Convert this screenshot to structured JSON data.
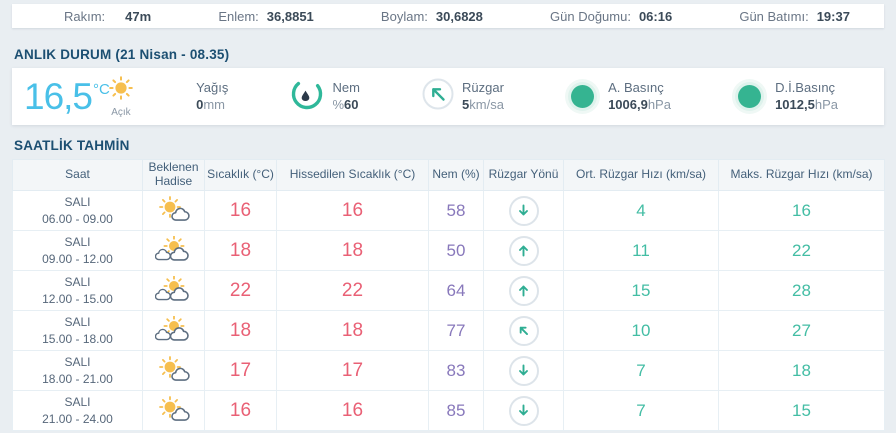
{
  "location_bar": {
    "items": [
      {
        "label": "Rakım:",
        "value": "47m"
      },
      {
        "label": "Enlem:",
        "value": "36,8851"
      },
      {
        "label": "Boylam:",
        "value": "30,6828"
      },
      {
        "label": "Gün Doğumu:",
        "value": "06:16"
      },
      {
        "label": "Gün Batımı:",
        "value": "19:37"
      }
    ]
  },
  "current": {
    "section_title": "ANLIK DURUM",
    "section_subtitle": "(21 Nisan - 08.35)",
    "temperature": "16,5",
    "temperature_unit": "°C",
    "condition_icon": "sun",
    "condition_label": "Açık",
    "precipitation_label": "Yağış",
    "precipitation_value": "0",
    "precipitation_unit": "mm",
    "humidity_icon": "humidity-gauge",
    "humidity_label": "Nem",
    "humidity_prefix": "%",
    "humidity_value": "60",
    "wind_icon": "wind-direction-circle",
    "wind_direction": "up-left",
    "wind_label": "Rüzgar",
    "wind_value": "5",
    "wind_unit": "km/sa",
    "pressure_icon": "pressure-dot",
    "pressure_label": "A. Basınç",
    "pressure_value": "1006,9",
    "pressure_unit": "hPa",
    "sea_pressure_icon": "pressure-dot",
    "sea_pressure_label": "D.İ.Basınç",
    "sea_pressure_value": "1012,5",
    "sea_pressure_unit": "hPa"
  },
  "hourly": {
    "section_title": "SAATLİK TAHMİN",
    "columns": [
      "Saat",
      "Beklenen Hadise",
      "Sıcaklık (°C)",
      "Hissedilen Sıcaklık (°C)",
      "Nem (%)",
      "Rüzgar Yönü",
      "Ort. Rüzgar Hızı (km/sa)",
      "Maks. Rüzgar Hızı (km/sa)"
    ],
    "rows": [
      {
        "day": "SALI",
        "time": "06.00 - 09.00",
        "icon": "sun-cloud",
        "temp": "16",
        "feels": "16",
        "humidity": "58",
        "wind_dir": "down",
        "avg_wind": "4",
        "max_wind": "16"
      },
      {
        "day": "SALI",
        "time": "09.00 - 12.00",
        "icon": "sun-clouds",
        "temp": "18",
        "feels": "18",
        "humidity": "50",
        "wind_dir": "up",
        "avg_wind": "11",
        "max_wind": "22"
      },
      {
        "day": "SALI",
        "time": "12.00 - 15.00",
        "icon": "sun-clouds",
        "temp": "22",
        "feels": "22",
        "humidity": "64",
        "wind_dir": "up",
        "avg_wind": "15",
        "max_wind": "28"
      },
      {
        "day": "SALI",
        "time": "15.00 - 18.00",
        "icon": "sun-clouds",
        "temp": "18",
        "feels": "18",
        "humidity": "77",
        "wind_dir": "up-left",
        "avg_wind": "10",
        "max_wind": "27"
      },
      {
        "day": "SALI",
        "time": "18.00 - 21.00",
        "icon": "sun-cloud",
        "temp": "17",
        "feels": "17",
        "humidity": "83",
        "wind_dir": "down",
        "avg_wind": "7",
        "max_wind": "18"
      },
      {
        "day": "SALI",
        "time": "21.00 - 24.00",
        "icon": "sun-cloud",
        "temp": "16",
        "feels": "16",
        "humidity": "85",
        "wind_dir": "down",
        "avg_wind": "7",
        "max_wind": "15"
      }
    ]
  },
  "colors": {
    "accent_teal": "#2fae93",
    "temperature_blue": "#49c0e8",
    "table_temp_pink": "#e96075",
    "humidity_purple": "#8878bb",
    "wind_teal": "#43bda4",
    "header_navy": "#1c4f72",
    "sun_yellow": "#f6bf4f",
    "pressure_green": "#35b491"
  }
}
